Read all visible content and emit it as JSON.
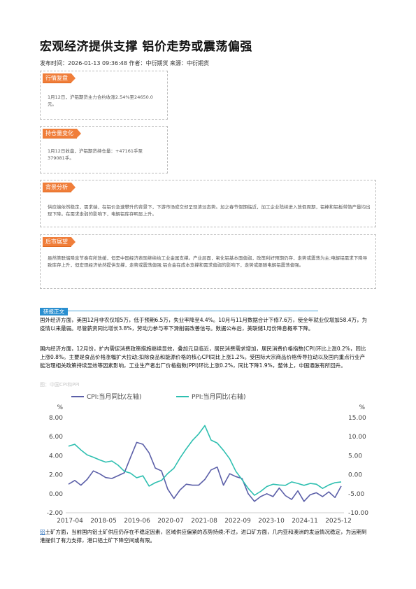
{
  "article": {
    "title": "宏观经济提供支撑 铝价走势或震荡偏强",
    "meta": "发布时间：2026-01-13 09:36:48 作者：中衍期货 来源：中衍期货"
  },
  "boxes": {
    "market_review": {
      "tag": "行情复盘",
      "text": "1月12日，沪铝期货主力合约收涨2.54%至24650.0元。"
    },
    "position_change": {
      "tag": "持仓量变化",
      "text": "1月12日收盘，沪铝期货持仓量：+47161手至379081手。"
    },
    "background": {
      "tag": "背景分析",
      "text": "供应端依然稳定，需求端，在铝价急速攀升的背景下，下游市场成交却呈现清淡态势。加之春节假期临近，加工企业陆续进入放假周期，铝棒和铝板带箔产量均出现下降。在需求走弱的影响下，电解铝库存明显上升。"
    },
    "outlook": {
      "tag": "后市展望",
      "text": "虽然美联储降息节奏有所放缓，但是中国经济表现继续给工业金属支撑。产业层面，氧化铝基本面偏弱，政策利好预期仍存，走势或震荡为主;电解铝需求下降导致库存上升，但宏观经济依然提供支撑，走势或震荡偏强;铝合金在成本支撑和需求偏弱的影响下，走势或跟随电解铝震荡偏强。"
    }
  },
  "section": {
    "label": "研报正文"
  },
  "paragraphs": {
    "p1": "国外经济方面，美国12月非农仅增5万，低于预期6.5万，失业率降至4.4%。10月与11月数据合计下修7.6万，使全年就业仅增加58.4万，为疫情以来最弱。尽管薪资同比增长3.8%，劳动力参与率下滑削弱改善信号。数据公布后，美联储1月份降息概率下降。",
    "p2": "国内经济方面，12月份，扩内需促消费政策措施继续显效，叠加元旦临近，居民消费需求增加，居民消费价格指数(CPI)环比上涨0.2%，同比上涨0.8%。主要是食品价格涨幅扩大拉动;扣除食品和能源价格的核心CPI同比上涨1.2%。受国际大宗商品价格传导拉动以及国内重点行业产能治理相关政策持续显效等因素影响，工业生产者出厂价格指数(PPI)环比上涨0.2%，同比下降1.9%，整体上，中国通胀有所回升。",
    "p3_link": "铝",
    "p3": "土矿方面，当前国内铝土矿供应仍存在不稳定因素，区域供应偏紧的态势持续;不过，进口矿方面，几内亚和澳洲的发运情况稳定，为远期到港提供了有力支撑，港口铝土矿下降空间或有限。"
  },
  "figure": {
    "caption": "图：中国CPI和PPI"
  },
  "colors": {
    "cpi": "#5b5fa8",
    "ppi": "#2ebfb0",
    "tag": "#f07e3a",
    "section": "#2a8fd0"
  },
  "chart_data": {
    "type": "line",
    "series": [
      {
        "name": "CPI:当月同比(左轴)",
        "axis": "left",
        "values": [
          1.0,
          1.4,
          0.9,
          1.5,
          2.4,
          2.1,
          1.7,
          1.6,
          1.9,
          2.2,
          3.8,
          5.4,
          5.2,
          4.3,
          2.7,
          2.4,
          0.5,
          -0.5,
          0.4,
          1.0,
          0.9,
          0.9,
          1.5,
          2.5,
          2.8,
          0.9,
          2.1,
          1.8,
          1.6,
          0.0,
          -0.8,
          -0.3,
          0.0,
          -0.3,
          0.6,
          -0.2,
          -0.6,
          0.3,
          -0.8,
          -0.1,
          0.1,
          -0.3,
          0.2,
          -0.4,
          0.8
        ]
      },
      {
        "name": "PPI:当月同比(右轴)",
        "axis": "right",
        "values": [
          7.5,
          8.0,
          6.5,
          5.2,
          4.6,
          3.9,
          3.3,
          3.6,
          2.5,
          0.9,
          0.4,
          -0.8,
          -0.3,
          -3.0,
          -2.1,
          -1.5,
          0.3,
          1.7,
          4.4,
          6.8,
          9.0,
          10.7,
          12.9,
          9.1,
          8.3,
          6.4,
          4.2,
          0.9,
          -1.3,
          -3.6,
          -5.4,
          -4.4,
          -3.1,
          -2.5,
          -2.7,
          -2.8,
          -1.9,
          -2.3,
          -2.8,
          -2.3,
          -2.5,
          -3.6,
          -2.7,
          -2.1,
          -1.9
        ]
      }
    ],
    "x_ticks": [
      "2017-04",
      "2018-05",
      "2019-06",
      "2020-07",
      "2021-08",
      "2022-09",
      "2023-10",
      "2024-11",
      "2025-12"
    ],
    "x_range": [
      "2017-01",
      "2025-12"
    ],
    "y_left": {
      "ticks": [
        "-2.00",
        "0.00",
        "2.00",
        "4.00",
        "6.00",
        "8.00"
      ],
      "unit": "%",
      "range": [
        -2,
        8
      ]
    },
    "y_right": {
      "ticks": [
        "-10.00",
        "-5.00",
        "0.00",
        "5.00",
        "10.00",
        "15.00"
      ],
      "unit": "%",
      "range": [
        -10,
        15
      ]
    },
    "legend_position": "top"
  }
}
